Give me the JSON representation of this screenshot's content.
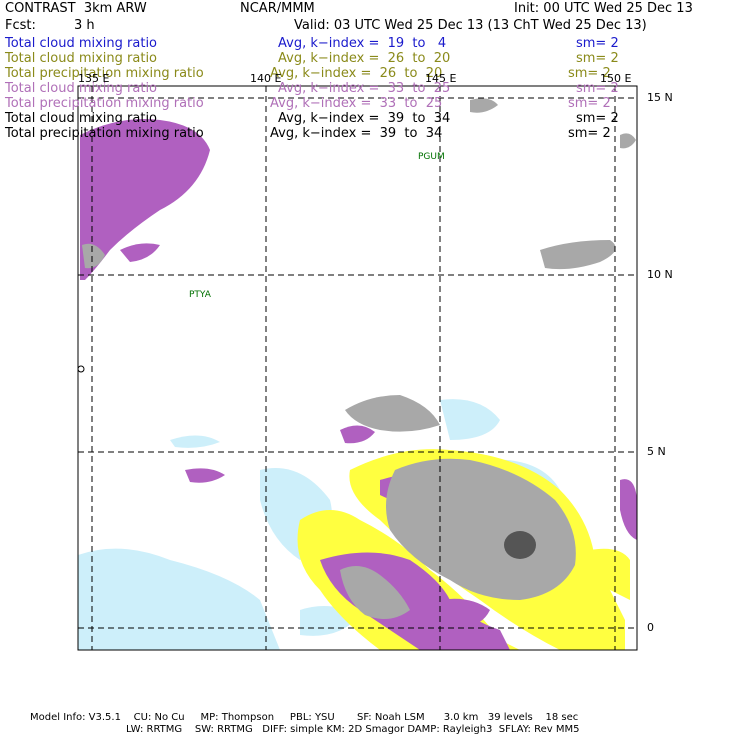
{
  "header": {
    "model": "CONTRAST  3km ARW",
    "center": "NCAR/MMM",
    "init": "Init: 00 UTC Wed 25 Dec 13",
    "fcst_label": "Fcst:",
    "fcst_value": "3 h",
    "valid": "Valid: 03 UTC Wed 25 Dec 13 (13 ChT Wed 25 Dec 13)"
  },
  "legend": [
    {
      "field": "Total cloud mixing ratio",
      "avg": "Avg, k−index =  19  to   4",
      "sm": "sm= 2",
      "color": "#1a1acc"
    },
    {
      "field": "Total cloud mixing ratio",
      "avg": "Avg, k−index =  26  to  20",
      "sm": "sm= 2",
      "color": "#8a8a1a"
    },
    {
      "field": "Total precipitation mixing ratio",
      "avg": "Avg, k−index =  26  to  20",
      "sm": "sm= 2",
      "color": "#8a8a1a"
    },
    {
      "field": "Total cloud mixing ratio",
      "avg": "Avg, k−index =  33  to  25",
      "sm": "sm= 2",
      "color": "#b070b8"
    },
    {
      "field": "Total precipitation mixing ratio",
      "avg": "Avg, k−index =  33  to  25",
      "sm": "sm= 2",
      "color": "#b070b8"
    },
    {
      "field": "Total cloud mixing ratio",
      "avg": "Avg, k−index =  39  to  34",
      "sm": "sm= 2",
      "color": "#000000"
    },
    {
      "field": "Total precipitation mixing ratio",
      "avg": "Avg, k−index =  39  to  34",
      "sm": "sm= 2",
      "color": "#000000"
    }
  ],
  "axes": {
    "lon": [
      "135 E",
      "140 E",
      "145 E",
      "150 E"
    ],
    "lat": [
      "15 N",
      "10 N",
      "5 N",
      "0"
    ]
  },
  "stations": [
    "PGUM",
    "PTYA"
  ],
  "footer": {
    "line1": "Model Info: V3.5.1    CU: No Cu     MP: Thompson     PBL: YSU       SF: Noah LSM      3.0 km   39 levels    18 sec",
    "line2": "LW: RRTMG    SW: RRTMG   DIFF: simple KM: 2D Smagor DAMP: Rayleigh3  SFLAY: Rev MM5"
  },
  "colors": {
    "purple": "#b060c0",
    "yellow": "#ffff40",
    "cyan": "#cdeffa",
    "gray": "#a8a8a8",
    "grid": "#000000",
    "station": "#007000"
  }
}
